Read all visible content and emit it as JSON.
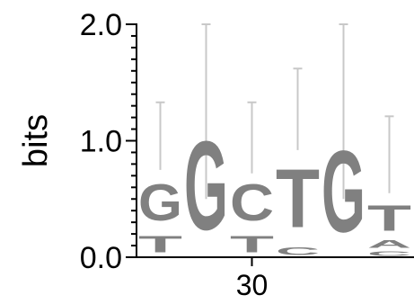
{
  "chart_data": {
    "type": "sequence_logo",
    "ylabel": "bits",
    "ylim": [
      0,
      2.0
    ],
    "y_ticks": [
      {
        "value": 0.0,
        "label": "0.0"
      },
      {
        "value": 1.0,
        "label": "1.0"
      },
      {
        "value": 2.0,
        "label": "2.0"
      }
    ],
    "x_ticks": [
      {
        "position_index": 2,
        "label": "30"
      }
    ],
    "letter_color": "#808080",
    "errorbar_color": "#c8c8c8",
    "positions": [
      {
        "stack": [
          {
            "letter": "T",
            "bits": 0.22
          },
          {
            "letter": "G",
            "bits": 0.5
          }
        ],
        "errorbar": [
          0.75,
          1.33
        ]
      },
      {
        "stack": [
          {
            "letter": "G",
            "bits": 1.22
          }
        ],
        "errorbar": [
          0.5,
          2.0
        ]
      },
      {
        "stack": [
          {
            "letter": "T",
            "bits": 0.22
          },
          {
            "letter": "C",
            "bits": 0.5
          }
        ],
        "errorbar": [
          0.72,
          1.33
        ]
      },
      {
        "stack": [
          {
            "letter": "C",
            "bits": 0.1
          },
          {
            "letter": "T",
            "bits": 0.8
          }
        ],
        "errorbar": [
          0.92,
          1.62
        ]
      },
      {
        "stack": [
          {
            "letter": "G",
            "bits": 1.12
          }
        ],
        "errorbar": [
          0.5,
          2.0
        ]
      },
      {
        "stack": [
          {
            "letter": "C",
            "bits": 0.06
          },
          {
            "letter": "A",
            "bits": 0.1
          },
          {
            "letter": "T",
            "bits": 0.35
          }
        ],
        "errorbar": [
          0.55,
          1.21
        ]
      }
    ]
  }
}
